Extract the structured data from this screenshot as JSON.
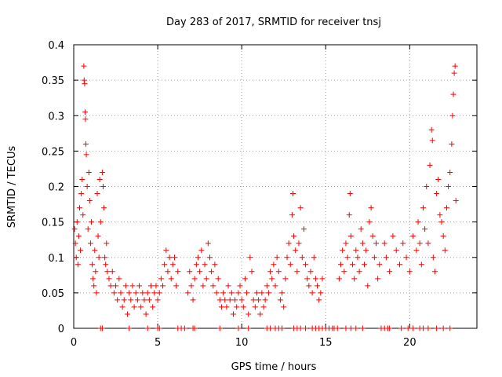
{
  "chart_data": {
    "type": "scatter",
    "title": "Day 283 of 2017, SRMTID for receiver tnsj",
    "xlabel": "GPS time / hours",
    "ylabel": "SRMTID / TECUs",
    "xlim": [
      0,
      24
    ],
    "ylim": [
      0,
      0.4
    ],
    "xticks": [
      0,
      5,
      10,
      15,
      20
    ],
    "yticks": [
      0,
      0.05,
      0.1,
      0.15,
      0.2,
      0.25,
      0.3,
      0.35,
      0.4
    ],
    "xtick_labels": [
      "0",
      "5",
      "10",
      "15",
      "20"
    ],
    "ytick_labels": [
      "0",
      "0.05",
      "0.1",
      "0.15",
      "0.2",
      "0.25",
      "0.3",
      "0.35",
      "0.4"
    ],
    "grid": true,
    "marker": "+",
    "color": "#ff0000",
    "series": [
      {
        "name": "SRMTID",
        "points": [
          [
            0.05,
            0.14
          ],
          [
            0.1,
            0.12
          ],
          [
            0.15,
            0.1
          ],
          [
            0.2,
            0.15
          ],
          [
            0.25,
            0.09
          ],
          [
            0.3,
            0.13
          ],
          [
            0.35,
            0.17
          ],
          [
            0.4,
            0.11
          ],
          [
            0.45,
            0.19
          ],
          [
            0.5,
            0.21
          ],
          [
            0.55,
            0.16
          ],
          [
            0.6,
            0.37
          ],
          [
            0.62,
            0.35
          ],
          [
            0.65,
            0.345
          ],
          [
            0.68,
            0.305
          ],
          [
            0.7,
            0.295
          ],
          [
            0.72,
            0.26
          ],
          [
            0.75,
            0.245
          ],
          [
            0.8,
            0.2
          ],
          [
            0.85,
            0.14
          ],
          [
            0.9,
            0.22
          ],
          [
            0.95,
            0.18
          ],
          [
            1.0,
            0.12
          ],
          [
            1.05,
            0.15
          ],
          [
            1.1,
            0.09
          ],
          [
            1.15,
            0.07
          ],
          [
            1.2,
            0.06
          ],
          [
            1.25,
            0.11
          ],
          [
            1.3,
            0.08
          ],
          [
            1.35,
            0.05
          ],
          [
            1.4,
            0.19
          ],
          [
            1.45,
            0.13
          ],
          [
            1.5,
            0.1
          ],
          [
            1.55,
            0.21
          ],
          [
            1.6,
            0.15
          ],
          [
            1.7,
            0.22
          ],
          [
            1.75,
            0.2
          ],
          [
            1.8,
            0.17
          ],
          [
            1.85,
            0.1
          ],
          [
            1.9,
            0.09
          ],
          [
            1.95,
            0.12
          ],
          [
            2.0,
            0.08
          ],
          [
            2.1,
            0.07
          ],
          [
            2.2,
            0.06
          ],
          [
            2.3,
            0.08
          ],
          [
            2.4,
            0.05
          ],
          [
            2.5,
            0.06
          ],
          [
            2.6,
            0.04
          ],
          [
            2.7,
            0.07
          ],
          [
            2.8,
            0.05
          ],
          [
            2.9,
            0.03
          ],
          [
            3.0,
            0.04
          ],
          [
            3.1,
            0.06
          ],
          [
            3.2,
            0.02
          ],
          [
            3.3,
            0.05
          ],
          [
            3.4,
            0.04
          ],
          [
            3.5,
            0.06
          ],
          [
            3.6,
            0.03
          ],
          [
            3.7,
            0.05
          ],
          [
            3.8,
            0.04
          ],
          [
            3.9,
            0.06
          ],
          [
            4.0,
            0.03
          ],
          [
            4.1,
            0.05
          ],
          [
            4.2,
            0.04
          ],
          [
            4.3,
            0.02
          ],
          [
            4.4,
            0.05
          ],
          [
            4.5,
            0.04
          ],
          [
            4.6,
            0.06
          ],
          [
            4.7,
            0.03
          ],
          [
            4.8,
            0.05
          ],
          [
            4.9,
            0.06
          ],
          [
            5.0,
            0.04
          ],
          [
            5.1,
            0.05
          ],
          [
            5.2,
            0.07
          ],
          [
            5.3,
            0.06
          ],
          [
            5.4,
            0.09
          ],
          [
            5.5,
            0.11
          ],
          [
            5.6,
            0.08
          ],
          [
            5.7,
            0.1
          ],
          [
            5.8,
            0.07
          ],
          [
            5.9,
            0.09
          ],
          [
            6.0,
            0.1
          ],
          [
            6.1,
            0.06
          ],
          [
            6.2,
            0.08
          ],
          [
            6.8,
            0.05
          ],
          [
            6.9,
            0.08
          ],
          [
            7.0,
            0.06
          ],
          [
            7.1,
            0.04
          ],
          [
            7.2,
            0.07
          ],
          [
            7.3,
            0.09
          ],
          [
            7.4,
            0.1
          ],
          [
            7.5,
            0.08
          ],
          [
            7.6,
            0.11
          ],
          [
            7.7,
            0.06
          ],
          [
            7.8,
            0.09
          ],
          [
            7.9,
            0.07
          ],
          [
            8.0,
            0.12
          ],
          [
            8.1,
            0.1
          ],
          [
            8.2,
            0.08
          ],
          [
            8.3,
            0.06
          ],
          [
            8.4,
            0.09
          ],
          [
            8.5,
            0.05
          ],
          [
            8.6,
            0.07
          ],
          [
            8.7,
            0.04
          ],
          [
            8.8,
            0.03
          ],
          [
            8.9,
            0.05
          ],
          [
            9.0,
            0.04
          ],
          [
            9.1,
            0.03
          ],
          [
            9.2,
            0.06
          ],
          [
            9.3,
            0.04
          ],
          [
            9.4,
            0.05
          ],
          [
            9.5,
            0.02
          ],
          [
            9.6,
            0.04
          ],
          [
            9.7,
            0.03
          ],
          [
            9.8,
            0.05
          ],
          [
            9.9,
            0.06
          ],
          [
            10.0,
            0.04
          ],
          [
            10.1,
            0.03
          ],
          [
            10.2,
            0.07
          ],
          [
            10.3,
            0.05
          ],
          [
            10.4,
            0.02
          ],
          [
            10.5,
            0.1
          ],
          [
            10.6,
            0.08
          ],
          [
            10.7,
            0.04
          ],
          [
            10.8,
            0.03
          ],
          [
            10.9,
            0.05
          ],
          [
            11.0,
            0.04
          ],
          [
            11.1,
            0.02
          ],
          [
            11.2,
            0.05
          ],
          [
            11.3,
            0.03
          ],
          [
            11.4,
            0.04
          ],
          [
            11.5,
            0.06
          ],
          [
            11.6,
            0.05
          ],
          [
            11.7,
            0.08
          ],
          [
            11.8,
            0.07
          ],
          [
            11.9,
            0.09
          ],
          [
            12.0,
            0.06
          ],
          [
            12.1,
            0.1
          ],
          [
            12.2,
            0.08
          ],
          [
            12.3,
            0.04
          ],
          [
            12.4,
            0.05
          ],
          [
            12.5,
            0.03
          ],
          [
            12.6,
            0.07
          ],
          [
            12.7,
            0.1
          ],
          [
            12.8,
            0.12
          ],
          [
            12.9,
            0.09
          ],
          [
            13.0,
            0.16
          ],
          [
            13.05,
            0.19
          ],
          [
            13.1,
            0.13
          ],
          [
            13.2,
            0.11
          ],
          [
            13.3,
            0.08
          ],
          [
            13.4,
            0.12
          ],
          [
            13.5,
            0.17
          ],
          [
            13.6,
            0.1
          ],
          [
            13.7,
            0.14
          ],
          [
            13.8,
            0.09
          ],
          [
            13.9,
            0.07
          ],
          [
            14.0,
            0.06
          ],
          [
            14.1,
            0.08
          ],
          [
            14.2,
            0.05
          ],
          [
            14.3,
            0.1
          ],
          [
            14.4,
            0.07
          ],
          [
            14.5,
            0.06
          ],
          [
            14.6,
            0.04
          ],
          [
            14.7,
            0.05
          ],
          [
            14.8,
            0.07
          ],
          [
            15.8,
            0.07
          ],
          [
            15.9,
            0.09
          ],
          [
            16.0,
            0.11
          ],
          [
            16.1,
            0.08
          ],
          [
            16.2,
            0.12
          ],
          [
            16.3,
            0.1
          ],
          [
            16.4,
            0.16
          ],
          [
            16.45,
            0.19
          ],
          [
            16.5,
            0.13
          ],
          [
            16.6,
            0.09
          ],
          [
            16.7,
            0.07
          ],
          [
            16.8,
            0.11
          ],
          [
            16.9,
            0.1
          ],
          [
            17.0,
            0.08
          ],
          [
            17.1,
            0.14
          ],
          [
            17.2,
            0.12
          ],
          [
            17.3,
            0.09
          ],
          [
            17.4,
            0.11
          ],
          [
            17.5,
            0.06
          ],
          [
            17.6,
            0.15
          ],
          [
            17.7,
            0.17
          ],
          [
            17.8,
            0.13
          ],
          [
            17.9,
            0.1
          ],
          [
            18.0,
            0.12
          ],
          [
            18.1,
            0.07
          ],
          [
            18.2,
            0.09
          ],
          [
            18.5,
            0.12
          ],
          [
            18.6,
            0.1
          ],
          [
            18.8,
            0.08
          ],
          [
            19.0,
            0.13
          ],
          [
            19.2,
            0.11
          ],
          [
            19.4,
            0.09
          ],
          [
            19.6,
            0.12
          ],
          [
            19.8,
            0.1
          ],
          [
            20.0,
            0.08
          ],
          [
            20.2,
            0.13
          ],
          [
            20.4,
            0.11
          ],
          [
            20.5,
            0.15
          ],
          [
            20.6,
            0.12
          ],
          [
            20.7,
            0.09
          ],
          [
            20.8,
            0.17
          ],
          [
            20.9,
            0.14
          ],
          [
            21.0,
            0.2
          ],
          [
            21.1,
            0.12
          ],
          [
            21.2,
            0.23
          ],
          [
            21.3,
            0.28
          ],
          [
            21.35,
            0.265
          ],
          [
            21.4,
            0.1
          ],
          [
            21.5,
            0.08
          ],
          [
            21.6,
            0.19
          ],
          [
            21.7,
            0.21
          ],
          [
            21.8,
            0.16
          ],
          [
            21.9,
            0.15
          ],
          [
            22.0,
            0.13
          ],
          [
            22.1,
            0.11
          ],
          [
            22.2,
            0.17
          ],
          [
            22.3,
            0.2
          ],
          [
            22.4,
            0.22
          ],
          [
            22.5,
            0.26
          ],
          [
            22.55,
            0.3
          ],
          [
            22.6,
            0.33
          ],
          [
            22.65,
            0.36
          ],
          [
            22.7,
            0.37
          ],
          [
            22.75,
            0.18
          ]
        ]
      }
    ],
    "zero_points_x": [
      1.6,
      1.7,
      3.3,
      4.4,
      5.0,
      5.1,
      6.2,
      6.4,
      6.6,
      7.1,
      7.2,
      8.7,
      9.8,
      10.4,
      11.5,
      11.7,
      12.0,
      12.2,
      12.4,
      13.1,
      13.3,
      13.5,
      13.8,
      14.2,
      14.4,
      14.6,
      14.8,
      15.0,
      15.2,
      15.4,
      15.5,
      15.7,
      16.2,
      16.5,
      16.8,
      17.2,
      18.3,
      18.5,
      18.7,
      18.8,
      19.5,
      19.9,
      20.2,
      20.6,
      20.8,
      21.1,
      21.6,
      22.0,
      22.4
    ]
  }
}
